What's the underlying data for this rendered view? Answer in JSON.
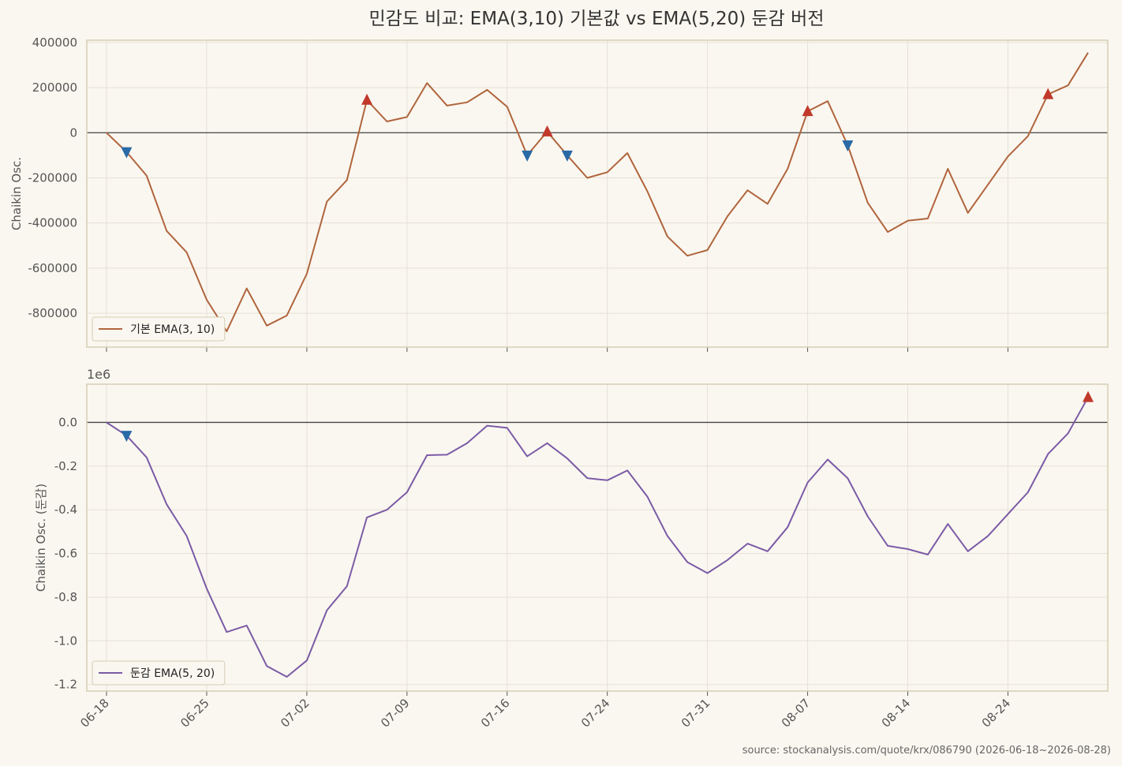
{
  "title": "민감도 비교: EMA(3,10) 기본값 vs EMA(5,20) 둔감 버전",
  "source_note": "source: stockanalysis.com/quote/krx/086790 (2026-06-18~2026-08-28)",
  "colors": {
    "background": "#faf7f0",
    "frame": "#d6cdb4",
    "grid": "#e6e1d6",
    "zero_line": "#444444",
    "line_top": "#b0653d",
    "line_bottom": "#7b5ba6",
    "buy_marker": "#c0392b",
    "sell_marker": "#2a6aa6"
  },
  "chart_data": [
    {
      "type": "line",
      "ylabel": "Chaikin Osc.",
      "ylim": [
        -950000,
        410000
      ],
      "yticks": [
        -800000,
        -600000,
        -400000,
        -200000,
        0,
        200000,
        400000
      ],
      "ytick_labels": [
        "-800000",
        "-600000",
        "-400000",
        "-200000",
        "0",
        "200000",
        "400000"
      ],
      "legend": {
        "label": "기본 EMA(3, 10)",
        "position": "lower-left"
      },
      "x": [
        0,
        1,
        2,
        3,
        4,
        5,
        6,
        7,
        8,
        9,
        10,
        11,
        12,
        13,
        14,
        15,
        16,
        17,
        18,
        19,
        20,
        21,
        22,
        23,
        24,
        25,
        26,
        27,
        28,
        29,
        30,
        31,
        32,
        33,
        34,
        35,
        36,
        37,
        38,
        39,
        40,
        41,
        42,
        43,
        44,
        45,
        46,
        47,
        48,
        49
      ],
      "values": [
        0,
        -85000,
        -190000,
        -435000,
        -530000,
        -740000,
        -880000,
        -690000,
        -855000,
        -810000,
        -625000,
        -305000,
        -210000,
        145000,
        50000,
        70000,
        220000,
        120000,
        135000,
        190000,
        115000,
        -100000,
        5000,
        -100000,
        -200000,
        -175000,
        -90000,
        -260000,
        -460000,
        -545000,
        -520000,
        -370000,
        -255000,
        -315000,
        -160000,
        95000,
        140000,
        -55000,
        -310000,
        -440000,
        -390000,
        -380000,
        -160000,
        -355000,
        -230000,
        -105000,
        -15000,
        170000,
        210000,
        355000
      ],
      "buy_signals": [
        13,
        22,
        35,
        47
      ],
      "sell_signals": [
        1,
        21,
        23,
        37
      ]
    },
    {
      "type": "line",
      "ylabel": "Chaikin Osc. (둔감)",
      "ylim": [
        -1230000,
        175000
      ],
      "yticks": [
        -1200000,
        -1000000,
        -800000,
        -600000,
        -400000,
        -200000,
        0
      ],
      "ytick_labels": [
        "-1.2",
        "-1.0",
        "-0.8",
        "-0.6",
        "-0.4",
        "-0.2",
        "0.0"
      ],
      "multiplier_label": "1e6",
      "legend": {
        "label": "둔감 EMA(5, 20)",
        "position": "lower-left"
      },
      "x": [
        0,
        1,
        2,
        3,
        4,
        5,
        6,
        7,
        8,
        9,
        10,
        11,
        12,
        13,
        14,
        15,
        16,
        17,
        18,
        19,
        20,
        21,
        22,
        23,
        24,
        25,
        26,
        27,
        28,
        29,
        30,
        31,
        32,
        33,
        34,
        35,
        36,
        37,
        38,
        39,
        40,
        41,
        42,
        43,
        44,
        45,
        46,
        47,
        48,
        49
      ],
      "values": [
        0,
        -60000,
        -160000,
        -375000,
        -520000,
        -760000,
        -960000,
        -930000,
        -1115000,
        -1165000,
        -1090000,
        -860000,
        -750000,
        -435000,
        -400000,
        -320000,
        -150000,
        -148000,
        -95000,
        -15000,
        -25000,
        -155000,
        -95000,
        -165000,
        -255000,
        -265000,
        -220000,
        -340000,
        -520000,
        -640000,
        -690000,
        -630000,
        -555000,
        -590000,
        -480000,
        -275000,
        -170000,
        -255000,
        -430000,
        -565000,
        -580000,
        -605000,
        -465000,
        -590000,
        -520000,
        -420000,
        -320000,
        -145000,
        -50000,
        115000
      ],
      "buy_signals": [
        49
      ],
      "sell_signals": [
        1
      ]
    }
  ],
  "x_axis": {
    "tick_labels": [
      "06-18",
      "06-25",
      "07-02",
      "07-09",
      "07-16",
      "07-24",
      "07-31",
      "08-07",
      "08-14",
      "08-24"
    ],
    "tick_positions": [
      0,
      5,
      10,
      15,
      20,
      25,
      30,
      35,
      40,
      45
    ]
  }
}
